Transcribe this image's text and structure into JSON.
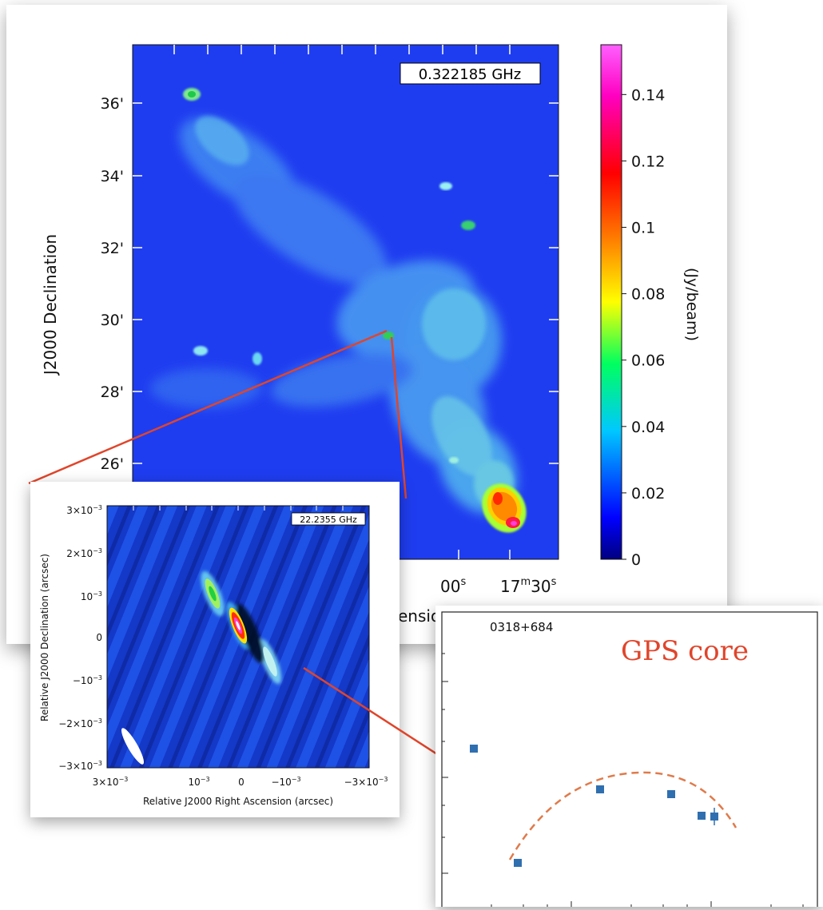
{
  "main_map": {
    "frequency_label": "0.322185 GHz",
    "y_axis_label": "J2000 Declination",
    "y_ticks": [
      "36'",
      "34'",
      "32'",
      "30'",
      "28'",
      "26'"
    ],
    "x_ticks_visible": [
      "00",
      "17",
      "30"
    ],
    "x_tick_superscripts": [
      "s",
      "m",
      "s"
    ],
    "x_axis_label_fragment": "ension",
    "colorbar": {
      "label": "(Jy/beam)",
      "ticks": [
        "0.14",
        "0.12",
        "0.1",
        "0.08",
        "0.06",
        "0.04",
        "0.02",
        "0"
      ],
      "tick_values": [
        0.14,
        0.12,
        0.1,
        0.08,
        0.06,
        0.04,
        0.02,
        0
      ],
      "range": [
        0,
        0.155
      ],
      "colors": [
        "#000080",
        "#0000ff",
        "#00ffff",
        "#00ff00",
        "#ffff00",
        "#ff8000",
        "#ff0000",
        "#ff00ff"
      ]
    }
  },
  "inset_map": {
    "frequency_label": "22.2355 GHz",
    "x_axis_label": "Relative J2000 Right Ascension (arcsec)",
    "y_axis_label": "Relative J2000 Declination (arcsec)",
    "y_ticks": [
      {
        "m": "3×10",
        "e": "−3"
      },
      {
        "m": "2×10",
        "e": "−3"
      },
      {
        "m": "10",
        "e": "−3"
      },
      {
        "m": "0",
        "e": ""
      },
      {
        "m": "−10",
        "e": "−3"
      },
      {
        "m": "−2×10",
        "e": "−3"
      },
      {
        "m": "−3×10",
        "e": "−3"
      }
    ],
    "x_ticks": [
      {
        "m": "3×10",
        "e": "−3"
      },
      {
        "m": "10",
        "e": "−3"
      },
      {
        "m": "0",
        "e": ""
      },
      {
        "m": "−10",
        "e": "−3"
      },
      {
        "m": "−3×10",
        "e": "−3"
      }
    ]
  },
  "sed_plot": {
    "source_name": "0318+684",
    "annotation": "GPS core",
    "annotation_color": "#e0452b",
    "marker_color": "#2f6fb0",
    "fit_color": "#e07a4a"
  },
  "pointer_color": "#e0452b"
}
